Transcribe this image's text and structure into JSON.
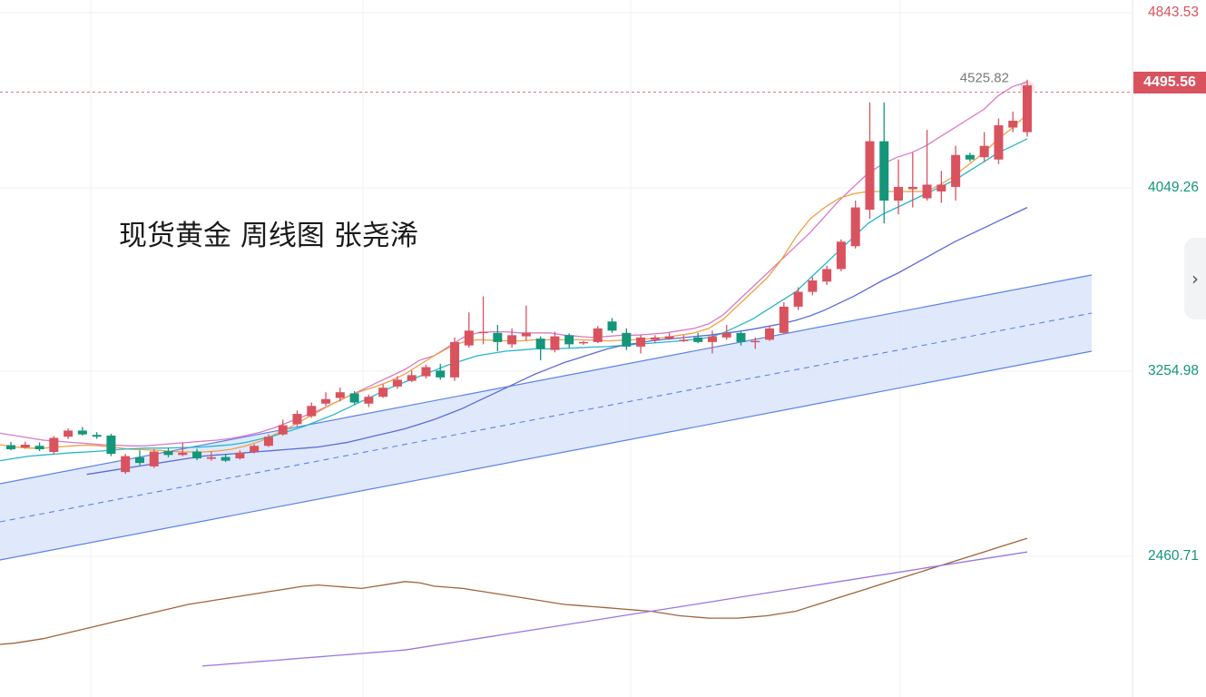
{
  "chart_data": {
    "type": "candlestick",
    "title": "现货黄金 周线图 张尧浠",
    "y_ticks": [
      "4843.53",
      "4049.26",
      "3254.98",
      "2460.71"
    ],
    "ylim": [
      1800,
      4900
    ],
    "last_price": "4495.56",
    "peak_label": "4525.82",
    "grid": true,
    "candles": [
      [
        2948,
        2930,
        2962,
        2925
      ],
      [
        2938,
        2950,
        2963,
        2932
      ],
      [
        2945,
        2930,
        2960,
        2922
      ],
      [
        2918,
        2980,
        2988,
        2910
      ],
      [
        2985,
        3012,
        3022,
        2975
      ],
      [
        3012,
        2995,
        3028,
        2990
      ],
      [
        2993,
        2985,
        3005,
        2976
      ],
      [
        2990,
        2910,
        2998,
        2900
      ],
      [
        2830,
        2900,
        2910,
        2822
      ],
      [
        2895,
        2870,
        2925,
        2860
      ],
      [
        2855,
        2920,
        2930,
        2848
      ],
      [
        2922,
        2905,
        2935,
        2895
      ],
      [
        2905,
        2915,
        2960,
        2900
      ],
      [
        2920,
        2890,
        2932,
        2882
      ],
      [
        2888,
        2895,
        2920,
        2880
      ],
      [
        2896,
        2880,
        2910,
        2874
      ],
      [
        2890,
        2915,
        2925,
        2885
      ],
      [
        2918,
        2945,
        2952,
        2912
      ],
      [
        2945,
        2985,
        2995,
        2940
      ],
      [
        2995,
        3035,
        3060,
        2990
      ],
      [
        3040,
        3085,
        3100,
        3030
      ],
      [
        3075,
        3120,
        3135,
        3068
      ],
      [
        3130,
        3150,
        3180,
        3120
      ],
      [
        3155,
        3180,
        3200,
        3140
      ],
      [
        3175,
        3135,
        3185,
        3125
      ],
      [
        3130,
        3160,
        3170,
        3115
      ],
      [
        3160,
        3200,
        3215,
        3155
      ],
      [
        3205,
        3235,
        3250,
        3195
      ],
      [
        3230,
        3255,
        3275,
        3225
      ],
      [
        3250,
        3290,
        3300,
        3240
      ],
      [
        3275,
        3245,
        3305,
        3235
      ],
      [
        3245,
        3400,
        3420,
        3230
      ],
      [
        3385,
        3450,
        3530,
        3375
      ],
      [
        3440,
        3445,
        3600,
        3390
      ],
      [
        3440,
        3400,
        3475,
        3360
      ],
      [
        3390,
        3430,
        3460,
        3375
      ],
      [
        3425,
        3440,
        3560,
        3405
      ],
      [
        3415,
        3370,
        3425,
        3320
      ],
      [
        3365,
        3425,
        3445,
        3355
      ],
      [
        3430,
        3390,
        3438,
        3375
      ],
      [
        3395,
        3400,
        3405,
        3388
      ],
      [
        3400,
        3460,
        3470,
        3395
      ],
      [
        3490,
        3450,
        3505,
        3440
      ],
      [
        3440,
        3380,
        3460,
        3365
      ],
      [
        3380,
        3420,
        3430,
        3350
      ],
      [
        3410,
        3420,
        3430,
        3395
      ],
      [
        3415,
        3425,
        3440,
        3410
      ],
      [
        3410,
        3410,
        3430,
        3400
      ],
      [
        3420,
        3400,
        3440,
        3395
      ],
      [
        3400,
        3425,
        3450,
        3350
      ],
      [
        3420,
        3440,
        3475,
        3410
      ],
      [
        3440,
        3400,
        3445,
        3385
      ],
      [
        3400,
        3405,
        3420,
        3370
      ],
      [
        3410,
        3460,
        3470,
        3405
      ],
      [
        3440,
        3555,
        3575,
        3435
      ],
      [
        3555,
        3620,
        3640,
        3540
      ],
      [
        3620,
        3670,
        3685,
        3605
      ],
      [
        3665,
        3720,
        3735,
        3650
      ],
      [
        3720,
        3840,
        3850,
        3710
      ],
      [
        3820,
        3990,
        4020,
        3810
      ],
      [
        3980,
        4280,
        4450,
        3940
      ],
      [
        4280,
        4020,
        4450,
        3920
      ],
      [
        4020,
        4080,
        4200,
        3960
      ],
      [
        4070,
        4080,
        4230,
        3990
      ],
      [
        4030,
        4090,
        4330,
        4020
      ],
      [
        4060,
        4090,
        4150,
        4010
      ],
      [
        4080,
        4220,
        4260,
        4020
      ],
      [
        4220,
        4200,
        4230,
        4190
      ],
      [
        4210,
        4260,
        4320,
        4190
      ],
      [
        4200,
        4350,
        4380,
        4180
      ],
      [
        4340,
        4370,
        4410,
        4320
      ],
      [
        4320,
        4525,
        4550,
        4300
      ]
    ],
    "series": [
      {
        "values": [
          3000,
          2990,
          2980,
          2970,
          2965,
          2960,
          2955,
          2950,
          2948,
          2945,
          2945,
          2950,
          2955,
          2960,
          2965,
          2970,
          2978,
          2990,
          3005,
          3025,
          3050,
          3075,
          3100,
          3130,
          3160,
          3190,
          3220,
          3250,
          3280,
          3320,
          3340,
          3380,
          3420,
          3440,
          3445,
          3445,
          3440,
          3440,
          3440,
          3430,
          3425,
          3420,
          3425,
          3430,
          3430,
          3435,
          3440,
          3450,
          3460,
          3480,
          3520,
          3580,
          3640,
          3700,
          3760,
          3820,
          3880,
          3950,
          4020,
          4080,
          4140,
          4180,
          4210,
          4230,
          4260,
          4300,
          4340,
          4380,
          4420,
          4480,
          4520,
          4540
        ]
      },
      {
        "values": [
          2950,
          2940,
          2935,
          2935,
          2940,
          2945,
          2948,
          2945,
          2938,
          2930,
          2928,
          2925,
          2920,
          2918,
          2918,
          2922,
          2930,
          2945,
          2965,
          2995,
          3025,
          3060,
          3095,
          3130,
          3160,
          3185,
          3205,
          3230,
          3260,
          3300,
          3340,
          3375,
          3400,
          3410,
          3408,
          3405,
          3405,
          3410,
          3410,
          3410,
          3410,
          3408,
          3405,
          3408,
          3410,
          3415,
          3420,
          3430,
          3440,
          3460,
          3500,
          3560,
          3620,
          3680,
          3760,
          3860,
          3940,
          3990,
          4030,
          4050,
          4060,
          4060,
          4060,
          4060,
          4060,
          4090,
          4130,
          4180,
          4230,
          4290,
          4340,
          4400
        ]
      },
      {
        "values": [
          2880,
          2890,
          2900,
          2905,
          2910,
          2915,
          2918,
          2922,
          2928,
          2932,
          2935,
          2935,
          2936,
          2938,
          2940,
          2945,
          2950,
          2960,
          2975,
          2990,
          3010,
          3030,
          3055,
          3080,
          3110,
          3140,
          3170,
          3200,
          3225,
          3250,
          3275,
          3300,
          3320,
          3340,
          3350,
          3360,
          3365,
          3370,
          3370,
          3372,
          3375,
          3378,
          3380,
          3385,
          3390,
          3395,
          3400,
          3405,
          3412,
          3420,
          3440,
          3470,
          3500,
          3540,
          3580,
          3620,
          3680,
          3740,
          3800,
          3860,
          3920,
          3960,
          3990,
          4020,
          4050,
          4080,
          4110,
          4150,
          4190,
          4230,
          4260,
          4290
        ]
      },
      {
        "values": [
          2820,
          2830,
          2840,
          2850,
          2860,
          2870,
          2880,
          2890,
          2900,
          2905,
          2910,
          2915,
          2920,
          2925,
          2930,
          2935,
          2940,
          2950,
          2960,
          2975,
          2990,
          3005,
          3020,
          3040,
          3060,
          3085,
          3110,
          3140,
          3170,
          3200,
          3230,
          3260,
          3285,
          3310,
          3330,
          3350,
          3370,
          3385,
          3395,
          3405,
          3412,
          3418,
          3424,
          3430,
          3438,
          3446,
          3456,
          3468,
          3480,
          3495,
          3515,
          3540,
          3570,
          3600,
          3635,
          3670,
          3700,
          3735,
          3770,
          3805,
          3840,
          3870,
          3900,
          3930,
          3960,
          3990
        ]
      },
      {
        "values": [
          2070,
          2075,
          2080,
          2090,
          2100,
          2115,
          2130,
          2145,
          2160,
          2175,
          2190,
          2205,
          2220,
          2235,
          2250,
          2260,
          2270,
          2280,
          2290,
          2300,
          2310,
          2320,
          2330,
          2335,
          2330,
          2325,
          2320,
          2330,
          2340,
          2350,
          2345,
          2330,
          2325,
          2320,
          2310,
          2300,
          2290,
          2280,
          2270,
          2260,
          2250,
          2245,
          2240,
          2235,
          2230,
          2225,
          2220,
          2210,
          2200,
          2195,
          2190,
          2190,
          2190,
          2195,
          2200,
          2210,
          2220,
          2240,
          2260,
          2280,
          2300,
          2320,
          2340,
          2360,
          2380,
          2400,
          2420,
          2440,
          2460,
          2480,
          2500,
          2520,
          2540
        ]
      },
      {
        "values": [
          1980,
          1985,
          1990,
          1995,
          2000,
          2005,
          2010,
          2015,
          2020,
          2025,
          2030,
          2035,
          2040,
          2045,
          2050,
          2060,
          2070,
          2080,
          2090,
          2100,
          2110,
          2120,
          2130,
          2140,
          2150,
          2160,
          2170,
          2180,
          2190,
          2200,
          2210,
          2220,
          2230,
          2240,
          2250,
          2260,
          2270,
          2280,
          2290,
          2300,
          2310,
          2320,
          2330,
          2340,
          2350,
          2360,
          2370,
          2380,
          2390,
          2400,
          2410,
          2420,
          2430,
          2440,
          2450,
          2460,
          2470,
          2480
        ]
      }
    ]
  },
  "colors": {
    "up": "#d9535f",
    "down": "#14967a",
    "ma_orange": "#f0a040",
    "ma_cyan": "#26b7c8",
    "ma_blue": "#5a6ad8",
    "band_pink": "#d97ac8",
    "ma_brown": "#a0643a",
    "ma_purple": "#9a78e0",
    "channel": "#5b82e8",
    "channel_fill": "#dbe4fb"
  },
  "ui": {
    "side_toggle": "›"
  }
}
